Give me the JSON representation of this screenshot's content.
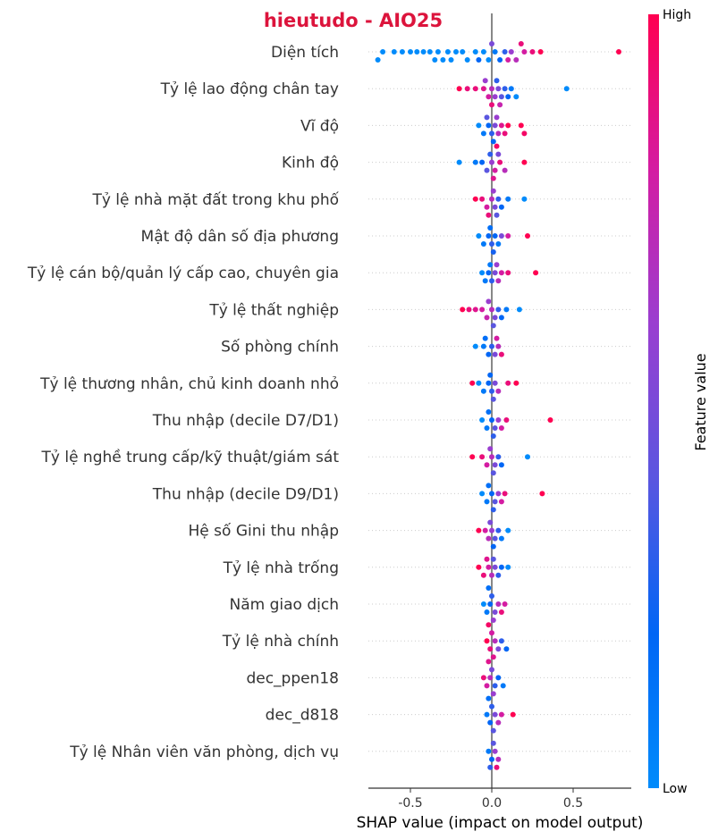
{
  "chart_data": {
    "type": "scatter",
    "subtype": "shap-beeswarm",
    "title": "hieutudo - AIO25",
    "title_color": "#dc143c",
    "xlabel": "SHAP value (impact on model output)",
    "xlim": [
      -0.75,
      0.85
    ],
    "xticks": [
      "-0.5",
      "0.0",
      "0.5"
    ],
    "xtick_values": [
      -0.5,
      0.0,
      0.5
    ],
    "colorbar": {
      "high_label": "High",
      "low_label": "Low",
      "title": "Feature value",
      "high_color": "#ff0051",
      "low_color": "#008bfb"
    },
    "features": [
      {
        "name": "Diện tích",
        "points": [
          [
            -0.67,
            0.0
          ],
          [
            -0.7,
            0.0
          ],
          [
            -0.6,
            0.0
          ],
          [
            -0.55,
            0.0
          ],
          [
            -0.5,
            0.0
          ],
          [
            -0.46,
            0.0
          ],
          [
            -0.42,
            0.0
          ],
          [
            -0.38,
            0.0
          ],
          [
            -0.35,
            0.0
          ],
          [
            -0.33,
            0.0
          ],
          [
            -0.3,
            0.0
          ],
          [
            -0.27,
            0.0
          ],
          [
            -0.25,
            0.0
          ],
          [
            -0.22,
            0.0
          ],
          [
            -0.18,
            0.0
          ],
          [
            -0.15,
            0.0
          ],
          [
            -0.1,
            0.0
          ],
          [
            -0.05,
            0.0
          ],
          [
            -0.02,
            0.0
          ],
          [
            0.02,
            0.1
          ],
          [
            0.05,
            0.2
          ],
          [
            0.08,
            0.3
          ],
          [
            0.12,
            0.6
          ],
          [
            0.15,
            0.7
          ],
          [
            0.2,
            0.8
          ],
          [
            0.25,
            0.9
          ],
          [
            0.3,
            1.0
          ],
          [
            0.78,
            1.0
          ],
          [
            0.1,
            0.8
          ],
          [
            0.18,
            0.9
          ],
          [
            -0.08,
            0.2
          ],
          [
            0.0,
            0.5
          ]
        ]
      },
      {
        "name": "Tỷ lệ lao động chân tay",
        "points": [
          [
            -0.2,
            1.0
          ],
          [
            -0.15,
            0.9
          ],
          [
            -0.1,
            0.9
          ],
          [
            -0.05,
            0.85
          ],
          [
            -0.02,
            0.8
          ],
          [
            0.0,
            0.7
          ],
          [
            0.02,
            0.6
          ],
          [
            0.04,
            0.5
          ],
          [
            0.06,
            0.4
          ],
          [
            0.08,
            0.3
          ],
          [
            0.1,
            0.2
          ],
          [
            0.12,
            0.1
          ],
          [
            0.15,
            0.0
          ],
          [
            0.46,
            0.0
          ],
          [
            0.03,
            0.3
          ],
          [
            -0.04,
            0.6
          ],
          [
            0.0,
            0.9
          ],
          [
            0.05,
            0.75
          ]
        ]
      },
      {
        "name": "Vĩ độ",
        "points": [
          [
            -0.08,
            0.0
          ],
          [
            -0.05,
            0.1
          ],
          [
            -0.02,
            0.2
          ],
          [
            0.0,
            0.3
          ],
          [
            0.02,
            0.5
          ],
          [
            0.04,
            0.7
          ],
          [
            0.06,
            0.85
          ],
          [
            0.08,
            0.9
          ],
          [
            0.1,
            1.0
          ],
          [
            0.18,
            1.0
          ],
          [
            0.2,
            0.95
          ],
          [
            -0.03,
            0.4
          ],
          [
            0.03,
            0.6
          ],
          [
            0.01,
            0.2
          ]
        ]
      },
      {
        "name": "Kinh độ",
        "points": [
          [
            -0.2,
            0.0
          ],
          [
            -0.1,
            0.1
          ],
          [
            -0.06,
            0.2
          ],
          [
            -0.03,
            0.4
          ],
          [
            0.0,
            0.6
          ],
          [
            0.02,
            0.8
          ],
          [
            0.05,
            0.9
          ],
          [
            0.08,
            0.7
          ],
          [
            0.2,
            1.0
          ],
          [
            0.04,
            0.5
          ],
          [
            -0.01,
            0.3
          ],
          [
            0.01,
            0.85
          ],
          [
            0.03,
            0.95
          ]
        ]
      },
      {
        "name": "Tỷ lệ nhà mặt đất trong khu phố",
        "points": [
          [
            -0.1,
            1.0
          ],
          [
            -0.06,
            0.9
          ],
          [
            -0.03,
            0.8
          ],
          [
            0.0,
            0.7
          ],
          [
            0.02,
            0.5
          ],
          [
            0.04,
            0.3
          ],
          [
            0.06,
            0.2
          ],
          [
            0.1,
            0.1
          ],
          [
            0.2,
            0.0
          ],
          [
            0.01,
            0.6
          ],
          [
            -0.02,
            0.9
          ],
          [
            0.03,
            0.4
          ]
        ]
      },
      {
        "name": "Mật độ dân số địa phương",
        "points": [
          [
            -0.08,
            0.0
          ],
          [
            -0.05,
            0.1
          ],
          [
            -0.02,
            0.2
          ],
          [
            0.0,
            0.3
          ],
          [
            0.02,
            0.2
          ],
          [
            0.04,
            0.1
          ],
          [
            0.06,
            0.5
          ],
          [
            0.1,
            0.8
          ],
          [
            0.22,
            1.0
          ],
          [
            -0.01,
            0.15
          ],
          [
            0.01,
            0.25
          ]
        ]
      },
      {
        "name": "Tỷ lệ cán bộ/quản lý cấp cao, chuyên gia",
        "points": [
          [
            -0.06,
            0.0
          ],
          [
            -0.04,
            0.1
          ],
          [
            -0.02,
            0.2
          ],
          [
            0.0,
            0.3
          ],
          [
            0.02,
            0.5
          ],
          [
            0.04,
            0.7
          ],
          [
            0.06,
            0.8
          ],
          [
            0.1,
            0.9
          ],
          [
            0.27,
            1.0
          ],
          [
            -0.01,
            0.1
          ],
          [
            0.03,
            0.6
          ]
        ]
      },
      {
        "name": "Tỷ lệ thất nghiệp",
        "points": [
          [
            -0.18,
            1.0
          ],
          [
            -0.14,
            0.9
          ],
          [
            -0.1,
            0.85
          ],
          [
            -0.06,
            0.8
          ],
          [
            -0.03,
            0.75
          ],
          [
            0.0,
            0.7
          ],
          [
            0.02,
            0.5
          ],
          [
            0.04,
            0.3
          ],
          [
            0.06,
            0.2
          ],
          [
            0.09,
            0.1
          ],
          [
            0.17,
            0.0
          ],
          [
            -0.02,
            0.6
          ],
          [
            0.01,
            0.4
          ]
        ]
      },
      {
        "name": "Số phòng chính",
        "points": [
          [
            -0.1,
            0.0
          ],
          [
            -0.05,
            0.1
          ],
          [
            -0.02,
            0.2
          ],
          [
            0.0,
            0.3
          ],
          [
            0.02,
            0.5
          ],
          [
            0.04,
            0.7
          ],
          [
            0.06,
            0.9
          ],
          [
            0.03,
            0.8
          ],
          [
            -0.04,
            0.15
          ]
        ]
      },
      {
        "name": "Tỷ lệ thương nhân, chủ kinh doanh nhỏ",
        "points": [
          [
            -0.12,
            1.0
          ],
          [
            -0.08,
            0.0
          ],
          [
            -0.05,
            0.1
          ],
          [
            -0.02,
            0.2
          ],
          [
            0.0,
            0.3
          ],
          [
            0.02,
            0.5
          ],
          [
            0.04,
            0.7
          ],
          [
            0.1,
            0.9
          ],
          [
            0.15,
            1.0
          ],
          [
            -0.01,
            0.2
          ],
          [
            0.01,
            0.4
          ]
        ]
      },
      {
        "name": "Thu nhập (decile D7/D1)",
        "points": [
          [
            -0.06,
            0.0
          ],
          [
            -0.03,
            0.1
          ],
          [
            0.0,
            0.2
          ],
          [
            0.02,
            0.4
          ],
          [
            0.04,
            0.6
          ],
          [
            0.06,
            0.8
          ],
          [
            0.09,
            0.9
          ],
          [
            0.36,
            1.0
          ],
          [
            -0.02,
            0.15
          ],
          [
            0.01,
            0.3
          ]
        ]
      },
      {
        "name": "Tỷ lệ nghề trung cấp/kỹ thuật/giám sát",
        "points": [
          [
            -0.12,
            1.0
          ],
          [
            -0.06,
            0.9
          ],
          [
            -0.03,
            0.8
          ],
          [
            0.0,
            0.7
          ],
          [
            0.02,
            0.5
          ],
          [
            0.04,
            0.3
          ],
          [
            0.06,
            0.2
          ],
          [
            0.22,
            0.0
          ],
          [
            -0.01,
            0.6
          ],
          [
            0.01,
            0.4
          ]
        ]
      },
      {
        "name": "Thu nhập (decile D9/D1)",
        "points": [
          [
            -0.06,
            0.0
          ],
          [
            -0.03,
            0.1
          ],
          [
            0.0,
            0.2
          ],
          [
            0.02,
            0.4
          ],
          [
            0.04,
            0.6
          ],
          [
            0.06,
            0.8
          ],
          [
            0.08,
            0.9
          ],
          [
            0.31,
            1.0
          ],
          [
            -0.02,
            0.15
          ],
          [
            0.01,
            0.3
          ]
        ]
      },
      {
        "name": "Hệ số Gini thu nhập",
        "points": [
          [
            -0.08,
            1.0
          ],
          [
            -0.04,
            0.8
          ],
          [
            -0.02,
            0.7
          ],
          [
            0.0,
            0.6
          ],
          [
            0.02,
            0.4
          ],
          [
            0.04,
            0.3
          ],
          [
            0.06,
            0.1
          ],
          [
            0.1,
            0.0
          ],
          [
            -0.01,
            0.5
          ],
          [
            0.01,
            0.2
          ]
        ]
      },
      {
        "name": "Tỷ lệ nhà trống",
        "points": [
          [
            -0.08,
            1.0
          ],
          [
            -0.05,
            0.9
          ],
          [
            -0.02,
            0.8
          ],
          [
            0.0,
            0.7
          ],
          [
            0.02,
            0.5
          ],
          [
            0.04,
            0.3
          ],
          [
            0.06,
            0.2
          ],
          [
            0.1,
            0.0
          ],
          [
            0.01,
            0.4
          ],
          [
            -0.03,
            0.85
          ]
        ]
      },
      {
        "name": "Năm giao dịch",
        "points": [
          [
            -0.05,
            0.0
          ],
          [
            -0.03,
            0.1
          ],
          [
            -0.01,
            0.2
          ],
          [
            0.0,
            0.3
          ],
          [
            0.02,
            0.5
          ],
          [
            0.04,
            0.7
          ],
          [
            0.06,
            0.9
          ],
          [
            0.08,
            0.8
          ],
          [
            0.01,
            0.6
          ],
          [
            -0.02,
            0.15
          ]
        ]
      },
      {
        "name": "Tỷ lệ nhà chính",
        "points": [
          [
            -0.03,
            1.0
          ],
          [
            -0.01,
            0.9
          ],
          [
            0.0,
            0.8
          ],
          [
            0.02,
            0.7
          ],
          [
            0.04,
            0.5
          ],
          [
            0.06,
            0.3
          ],
          [
            0.09,
            0.2
          ],
          [
            0.01,
            0.85
          ],
          [
            -0.02,
            0.95
          ]
        ]
      },
      {
        "name": "dec_ppen18",
        "points": [
          [
            -0.05,
            0.9
          ],
          [
            -0.03,
            0.8
          ],
          [
            -0.01,
            0.7
          ],
          [
            0.0,
            0.5
          ],
          [
            0.02,
            0.3
          ],
          [
            0.04,
            0.2
          ],
          [
            0.07,
            0.1
          ],
          [
            0.01,
            0.6
          ],
          [
            -0.02,
            0.85
          ]
        ]
      },
      {
        "name": "dec_d818",
        "points": [
          [
            -0.03,
            0.1
          ],
          [
            -0.01,
            0.2
          ],
          [
            0.0,
            0.3
          ],
          [
            0.02,
            0.5
          ],
          [
            0.04,
            0.7
          ],
          [
            0.06,
            0.8
          ],
          [
            0.13,
            1.0
          ],
          [
            0.01,
            0.4
          ],
          [
            -0.02,
            0.15
          ]
        ]
      },
      {
        "name": "Tỷ lệ Nhân viên văn phòng, dịch vụ",
        "points": [
          [
            -0.02,
            0.1
          ],
          [
            0.0,
            0.2
          ],
          [
            0.01,
            0.4
          ],
          [
            0.02,
            0.6
          ],
          [
            0.04,
            0.7
          ],
          [
            0.03,
            0.9
          ],
          [
            -0.01,
            0.3
          ]
        ]
      }
    ]
  }
}
